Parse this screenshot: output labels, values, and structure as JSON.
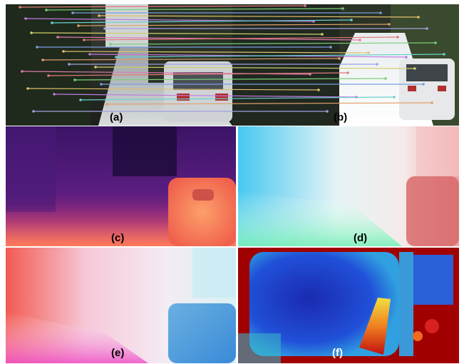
{
  "figure": {
    "panels": [
      {
        "id": "a",
        "label": "(a)"
      },
      {
        "id": "b",
        "label": "(b)"
      },
      {
        "id": "c",
        "label": "(c)"
      },
      {
        "id": "d",
        "label": "(d)"
      },
      {
        "id": "e",
        "label": "(e)"
      },
      {
        "id": "f",
        "label": "(f)"
      }
    ]
  },
  "colors": {
    "match_lines": [
      "#e07a7a",
      "#7ad07a",
      "#7a9ee0",
      "#e0c06a",
      "#c07ae0",
      "#6ad0d0",
      "#e0a06a",
      "#a0a0e0",
      "#d0d06a",
      "#e07ab0"
    ]
  }
}
